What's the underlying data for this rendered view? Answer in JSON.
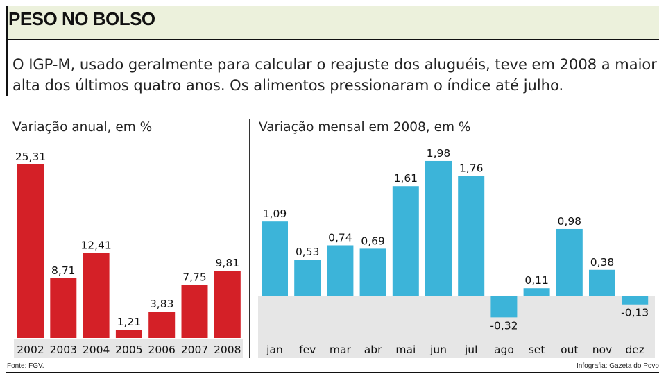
{
  "header": {
    "title": "PESO NO BOLSO"
  },
  "intro": "O IGP-M, usado geralmente para calcular o reajuste dos aluguéis, teve em 2008 a maior alta dos últimos quatro anos. Os alimentos pressionaram o índice até julho.",
  "footer": {
    "source": "Fonte: FGV.",
    "credit": "Infografia: Gazeta do Povo"
  },
  "colors": {
    "annual_bar": "#d42027",
    "monthly_bar": "#3cb4d9",
    "band": "#e6e6e6",
    "header_bg": "#ecf1dc"
  },
  "chart_data": [
    {
      "type": "bar",
      "title": "Variação anual, em %",
      "categories": [
        "2002",
        "2003",
        "2004",
        "2005",
        "2006",
        "2007",
        "2008"
      ],
      "values": [
        25.31,
        8.71,
        12.41,
        1.21,
        3.83,
        7.75,
        9.81
      ],
      "labels": [
        "25,31",
        "8,71",
        "12,41",
        "1,21",
        "3,83",
        "7,75",
        "9,81"
      ]
    },
    {
      "type": "bar",
      "title": "Variação mensal em 2008, em %",
      "categories": [
        "jan",
        "fev",
        "mar",
        "abr",
        "mai",
        "jun",
        "jul",
        "ago",
        "set",
        "out",
        "nov",
        "dez"
      ],
      "values": [
        1.09,
        0.53,
        0.74,
        0.69,
        1.61,
        1.98,
        1.76,
        -0.32,
        0.11,
        0.98,
        0.38,
        -0.13
      ],
      "labels": [
        "1,09",
        "0,53",
        "0,74",
        "0,69",
        "1,61",
        "1,98",
        "1,76",
        "-0,32",
        "0,11",
        "0,98",
        "0,38",
        "-0,13"
      ]
    }
  ]
}
